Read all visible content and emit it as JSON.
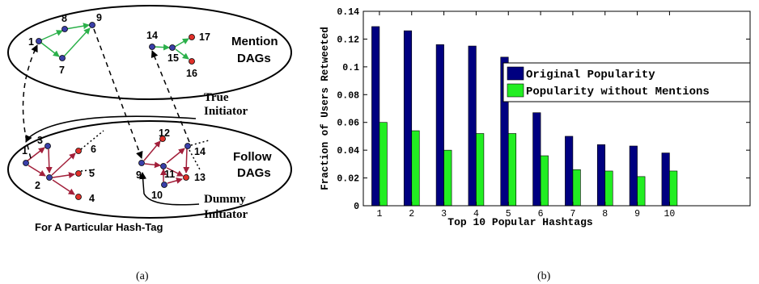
{
  "figure": {
    "panel_a": {
      "caption": "(a)",
      "footer": "For A Particular Hash-Tag",
      "mention_label": [
        "Mention",
        "DAGs"
      ],
      "follow_label": [
        "Follow",
        "DAGs"
      ],
      "true_initiator_label": [
        "True",
        "Initiator"
      ],
      "dummy_initiator_label": [
        "Dummy",
        "Initiator"
      ],
      "node_labels": {
        "n1m": "1",
        "n7": "7",
        "n8": "8",
        "n9m": "9",
        "n14m": "14",
        "n15": "15",
        "n16": "16",
        "n17": "17",
        "n1f": "1",
        "n2": "2",
        "n3": "3",
        "n4": "4",
        "n5": "5",
        "n6": "6",
        "n9f": "9",
        "n10": "10",
        "n11": "11",
        "n12": "12",
        "n13": "13",
        "n14f": "14"
      },
      "colors": {
        "blue_node": "#3a3fa8",
        "red_node": "#e0302a",
        "green_edge": "#2bb04a",
        "maroon_edge": "#a21f3a"
      }
    },
    "panel_b": {
      "caption": "(b)"
    }
  },
  "chart_data": {
    "type": "bar",
    "categories": [
      "1",
      "2",
      "3",
      "4",
      "5",
      "6",
      "7",
      "8",
      "9",
      "10"
    ],
    "series": [
      {
        "name": "Original Popularity",
        "color": "#000080",
        "values": [
          0.129,
          0.126,
          0.116,
          0.115,
          0.107,
          0.067,
          0.05,
          0.044,
          0.043,
          0.038
        ]
      },
      {
        "name": "Popularity without Mentions",
        "color": "#22ee22",
        "values": [
          0.06,
          0.054,
          0.04,
          0.052,
          0.052,
          0.036,
          0.026,
          0.025,
          0.021,
          0.025
        ]
      }
    ],
    "xlabel": "Top 10 Popular Hashtags",
    "ylabel": "Fraction of Users Retweeted",
    "ylim": [
      0,
      0.14
    ],
    "yticks": [
      "0",
      "0.02",
      "0.04",
      "0.06",
      "0.08",
      "0.1",
      "0.12",
      "0.14"
    ],
    "xlim": [
      0.5,
      12.5
    ],
    "legend_position": "top-right",
    "grid": false
  }
}
